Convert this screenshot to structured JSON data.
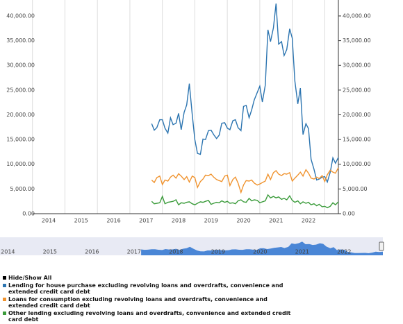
{
  "chart_data": {
    "type": "line",
    "x": [
      2017.67,
      2017.75,
      2017.83,
      2017.92,
      2018.0,
      2018.08,
      2018.17,
      2018.25,
      2018.33,
      2018.42,
      2018.5,
      2018.58,
      2018.67,
      2018.75,
      2018.83,
      2018.92,
      2019.0,
      2019.08,
      2019.17,
      2019.25,
      2019.33,
      2019.42,
      2019.5,
      2019.58,
      2019.67,
      2019.75,
      2019.83,
      2019.92,
      2020.0,
      2020.08,
      2020.17,
      2020.25,
      2020.33,
      2020.42,
      2020.5,
      2020.58,
      2020.67,
      2020.75,
      2020.83,
      2020.92,
      2021.0,
      2021.08,
      2021.17,
      2021.25,
      2021.33,
      2021.42,
      2021.5,
      2021.58,
      2021.67,
      2021.75,
      2021.83,
      2021.92,
      2022.0,
      2022.08,
      2022.17,
      2022.25,
      2022.33,
      2022.42,
      2022.5,
      2022.58,
      2022.67,
      2022.75,
      2022.83,
      2022.92,
      2023.0,
      2023.08,
      2023.17,
      2023.25,
      2023.33,
      2023.42
    ],
    "series": [
      {
        "name": "Lending for house purchase excluding revolving loans and overdrafts, convenience and extended credit card debt",
        "color": "#2b74b0",
        "values": [
          18200,
          16900,
          17400,
          19000,
          19000,
          17300,
          16300,
          19400,
          18000,
          18300,
          20300,
          17000,
          20500,
          22000,
          26300,
          20000,
          15000,
          12200,
          12000,
          15100,
          15000,
          16800,
          16900,
          16000,
          15200,
          15900,
          18300,
          18400,
          17300,
          17000,
          18800,
          19000,
          17400,
          16800,
          21700,
          21900,
          19400,
          21000,
          23000,
          24500,
          25800,
          22600,
          26000,
          37200,
          34800,
          37600,
          42500,
          34300,
          34800,
          32000,
          33200,
          37400,
          35500,
          26800,
          22200,
          25400,
          16000,
          18200,
          17200,
          11000,
          9000,
          6800,
          7000,
          7400,
          7500,
          6400,
          8400,
          11300,
          10200,
          11400
        ]
      },
      {
        "name": "Loans for consumption excluding revolving loans and overdrafts, convenience and extended credit card debt",
        "color": "#f0932e",
        "values": [
          6800,
          6300,
          7300,
          7600,
          5900,
          6800,
          6600,
          7400,
          7800,
          7200,
          8100,
          7600,
          6900,
          7500,
          6400,
          7600,
          7300,
          5300,
          6500,
          7000,
          7800,
          7700,
          8000,
          7400,
          6900,
          6700,
          6500,
          7600,
          7800,
          5700,
          6900,
          7400,
          6200,
          4300,
          5800,
          6700,
          6600,
          6800,
          6200,
          5800,
          6000,
          6300,
          6600,
          8000,
          6900,
          8300,
          8700,
          8000,
          7700,
          8100,
          8000,
          8300,
          6600,
          7200,
          7800,
          8400,
          7600,
          8900,
          8200,
          7200,
          7000,
          7400,
          7100,
          7700,
          6500,
          7900,
          8800,
          8400,
          8200,
          9300
        ]
      },
      {
        "name": "Other lending excluding revolving loans and overdrafts, convenience and extended credit card debt",
        "color": "#3a9b3a",
        "values": [
          2500,
          2000,
          2100,
          2200,
          3500,
          2000,
          2300,
          2400,
          2500,
          2800,
          1800,
          2200,
          2100,
          2300,
          2400,
          2000,
          1800,
          2100,
          2400,
          2300,
          2500,
          2700,
          1900,
          2100,
          2300,
          2200,
          2600,
          2300,
          2500,
          2100,
          2200,
          2000,
          2600,
          2800,
          2400,
          2300,
          3100,
          2600,
          2800,
          2700,
          2200,
          2400,
          2600,
          3800,
          3200,
          3500,
          3200,
          3400,
          2900,
          3100,
          2800,
          3600,
          2700,
          2300,
          2600,
          2000,
          2400,
          2100,
          2300,
          1800,
          2000,
          1600,
          1900,
          1400,
          1500,
          1200,
          1500,
          2200,
          1800,
          2400
        ]
      }
    ],
    "xlim": [
      2014.22,
      2023.42
    ],
    "xticks": [
      {
        "value": 2014.5,
        "label": "2014"
      },
      {
        "value": 2015.5,
        "label": "2015"
      },
      {
        "value": 2016.5,
        "label": "2016"
      },
      {
        "value": 2017.5,
        "label": "2017"
      },
      {
        "value": 2018.5,
        "label": "2018"
      },
      {
        "value": 2019.5,
        "label": "2019"
      },
      {
        "value": 2020.5,
        "label": "2020"
      },
      {
        "value": 2021.5,
        "label": "2021"
      },
      {
        "value": 2022.5,
        "label": "2022"
      }
    ],
    "ylim": [
      0,
      43000
    ],
    "yticks": [
      {
        "value": 0,
        "label": "0.00"
      },
      {
        "value": 5000,
        "label": "5,000.00"
      },
      {
        "value": 10000,
        "label": "10,000.00"
      },
      {
        "value": 15000,
        "label": "15,000.00"
      },
      {
        "value": 20000,
        "label": "20,000.00"
      },
      {
        "value": 25000,
        "label": "25,000.00"
      },
      {
        "value": 30000,
        "label": "30,000.00"
      },
      {
        "value": 35000,
        "label": "35,000.00"
      },
      {
        "value": 40000,
        "label": "40,000.00"
      }
    ],
    "grid": true,
    "legend_toggle": "Hide/Show All"
  }
}
